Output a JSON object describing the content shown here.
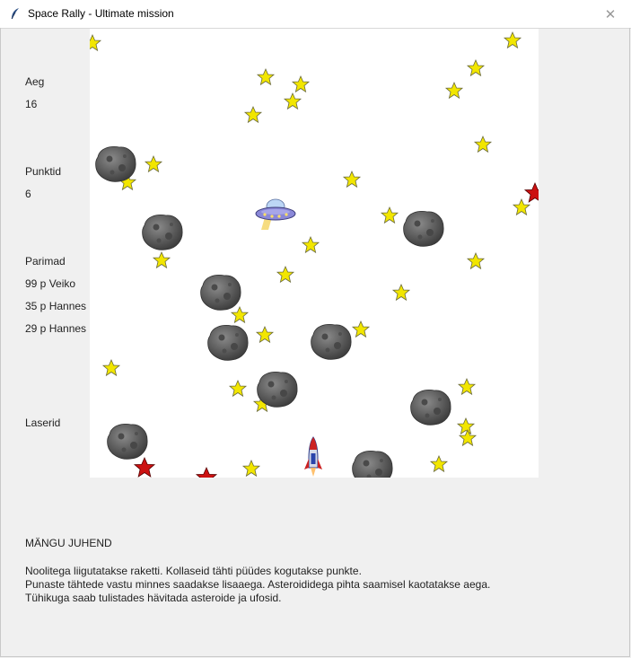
{
  "window": {
    "title": "Space Rally - Ultimate mission",
    "close_label": "✕"
  },
  "sidebar": {
    "time_label": "Aeg",
    "time_value": "16",
    "score_label": "Punktid",
    "score_value": "6",
    "best_label": "Parimad",
    "best_entries": [
      "99 p Veiko",
      "35 p Hannes",
      "29 p Hannes"
    ],
    "lasers_label": "Laserid"
  },
  "instructions": {
    "title": "MÄNGU JUHEND",
    "lines": [
      "Noolitega liigutatakse raketti. Kollaseid tähti püüdes kogutakse punkte.",
      "Punaste tähtede vastu minnes saadakse lisaaega. Asteroididega pihta saamisel kaotatakse aega.",
      "Tühikuga saab tulistades hävitada asteroide ja ufosid."
    ]
  },
  "icons": {
    "app": "feather-icon",
    "close": "close-icon",
    "yellow_star": "yellow-star-icon",
    "red_star": "red-star-icon",
    "asteroid": "asteroid-icon",
    "ufo": "ufo-icon",
    "rocket": "rocket-icon"
  },
  "colors": {
    "yellow_star": "#f2e600",
    "red_star": "#cc1111",
    "asteroid": "#5a5a5a",
    "canvas": "#ffffff",
    "window_bg": "#f0f0f0"
  }
}
